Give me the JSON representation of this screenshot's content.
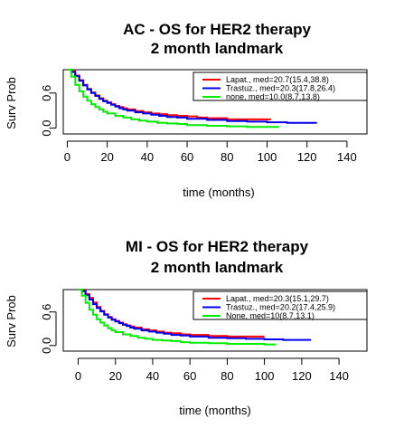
{
  "chart_data": [
    {
      "type": "line",
      "title": "AC - OS for HER2 therapy",
      "subtitle": "2 month landmark",
      "xlabel": "time (months)",
      "ylabel": "Surv Prob",
      "xlim": [
        -2,
        150
      ],
      "ylim": [
        -0.1,
        1.0
      ],
      "xticks": [
        0,
        20,
        40,
        60,
        80,
        100,
        120,
        140
      ],
      "yticks": [
        0.0,
        0.6
      ],
      "legend_position": "top-right",
      "series": [
        {
          "name": "Lapat., med=20.7(15.4,38.8)",
          "color": "#ff0000",
          "x": [
            0,
            2,
            4,
            6,
            8,
            10,
            12,
            14,
            16,
            18,
            20,
            22,
            24,
            26,
            28,
            30,
            34,
            38,
            42,
            46,
            50,
            55,
            60,
            65,
            70,
            80,
            90,
            100,
            102
          ],
          "y": [
            1.0,
            0.97,
            0.9,
            0.82,
            0.74,
            0.67,
            0.61,
            0.56,
            0.51,
            0.47,
            0.44,
            0.41,
            0.38,
            0.36,
            0.34,
            0.32,
            0.29,
            0.27,
            0.25,
            0.24,
            0.22,
            0.21,
            0.2,
            0.18,
            0.17,
            0.15,
            0.15,
            0.15,
            0.15
          ]
        },
        {
          "name": "Trastuz., med=20.3(17.8,26.4)",
          "color": "#0000ee",
          "x": [
            0,
            2,
            4,
            6,
            8,
            10,
            12,
            14,
            16,
            18,
            20,
            22,
            24,
            26,
            28,
            30,
            34,
            38,
            42,
            46,
            50,
            55,
            60,
            70,
            80,
            90,
            100,
            110,
            125
          ],
          "y": [
            1.0,
            0.96,
            0.89,
            0.81,
            0.73,
            0.66,
            0.6,
            0.55,
            0.5,
            0.46,
            0.43,
            0.4,
            0.37,
            0.34,
            0.32,
            0.3,
            0.27,
            0.25,
            0.23,
            0.21,
            0.19,
            0.18,
            0.16,
            0.14,
            0.12,
            0.11,
            0.1,
            0.09,
            0.09
          ]
        },
        {
          "name": "none, med=10.0(8.7,13.8)",
          "color": "#00ee00",
          "x": [
            0,
            2,
            4,
            6,
            8,
            10,
            12,
            14,
            16,
            18,
            20,
            24,
            28,
            32,
            36,
            40,
            45,
            50,
            55,
            60,
            70,
            80,
            90,
            100,
            106
          ],
          "y": [
            1.0,
            0.88,
            0.74,
            0.63,
            0.54,
            0.47,
            0.41,
            0.36,
            0.32,
            0.28,
            0.25,
            0.21,
            0.18,
            0.15,
            0.13,
            0.11,
            0.09,
            0.08,
            0.07,
            0.05,
            0.04,
            0.03,
            0.02,
            0.02,
            0.02
          ]
        }
      ]
    },
    {
      "type": "line",
      "title": "MI - OS for HER2 therapy",
      "subtitle": "2 month landmark",
      "xlabel": "time (months)",
      "ylabel": "Surv Prob",
      "xlim": [
        -8,
        155
      ],
      "ylim": [
        -0.1,
        1.0
      ],
      "xticks": [
        0,
        20,
        40,
        60,
        80,
        100,
        120,
        140
      ],
      "yticks": [
        0.0,
        0.6
      ],
      "legend_position": "top-right",
      "series": [
        {
          "name": "Lapat., med=20.3(15.1,29.7)",
          "color": "#ff0000",
          "x": [
            0,
            2,
            4,
            6,
            8,
            10,
            12,
            14,
            16,
            18,
            20,
            22,
            24,
            26,
            28,
            30,
            34,
            38,
            42,
            46,
            50,
            55,
            60,
            70,
            80,
            90,
            100
          ],
          "y": [
            1.0,
            0.98,
            0.92,
            0.85,
            0.77,
            0.69,
            0.62,
            0.56,
            0.51,
            0.47,
            0.44,
            0.41,
            0.38,
            0.36,
            0.34,
            0.32,
            0.29,
            0.27,
            0.25,
            0.23,
            0.22,
            0.2,
            0.19,
            0.17,
            0.16,
            0.16,
            0.16
          ]
        },
        {
          "name": "Trastuz., med=20.2(17.4,25.9)",
          "color": "#0000ee",
          "x": [
            0,
            2,
            4,
            6,
            8,
            10,
            12,
            14,
            16,
            18,
            20,
            22,
            24,
            26,
            28,
            30,
            34,
            38,
            42,
            46,
            50,
            55,
            60,
            70,
            80,
            90,
            100,
            110,
            125
          ],
          "y": [
            1.0,
            0.97,
            0.9,
            0.82,
            0.74,
            0.67,
            0.61,
            0.55,
            0.5,
            0.46,
            0.43,
            0.4,
            0.37,
            0.35,
            0.32,
            0.3,
            0.27,
            0.25,
            0.23,
            0.21,
            0.19,
            0.18,
            0.16,
            0.14,
            0.13,
            0.12,
            0.11,
            0.1,
            0.1
          ]
        },
        {
          "name": "None, med=10(8.7,13.1)",
          "color": "#00ee00",
          "x": [
            0,
            2,
            4,
            6,
            8,
            10,
            12,
            14,
            16,
            18,
            20,
            24,
            28,
            32,
            36,
            40,
            45,
            50,
            55,
            60,
            70,
            80,
            90,
            100,
            106
          ],
          "y": [
            1.0,
            0.89,
            0.76,
            0.64,
            0.55,
            0.47,
            0.41,
            0.36,
            0.31,
            0.27,
            0.24,
            0.2,
            0.17,
            0.14,
            0.12,
            0.1,
            0.09,
            0.08,
            0.06,
            0.05,
            0.04,
            0.03,
            0.03,
            0.02,
            0.02
          ]
        }
      ]
    }
  ]
}
